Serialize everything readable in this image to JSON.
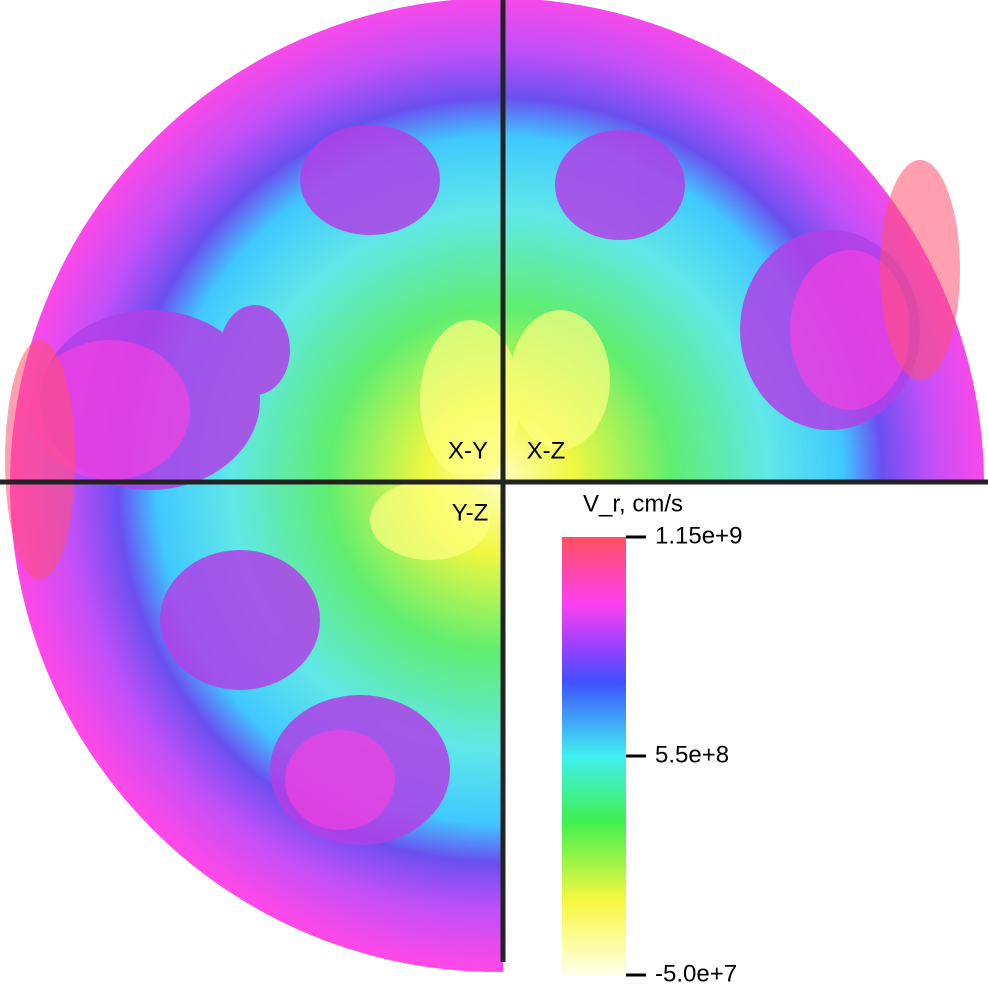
{
  "panels": {
    "top_left": "X-Y",
    "top_right": "X-Z",
    "bottom_left": "Y-Z"
  },
  "colorbar": {
    "title": "V_r, cm/s",
    "ticks": [
      {
        "value": 1150000000,
        "label": "1.15e+9"
      },
      {
        "value": 550000000,
        "label": "5.5e+8"
      },
      {
        "value": -50000000,
        "label": "-5.0e+7"
      }
    ]
  }
}
